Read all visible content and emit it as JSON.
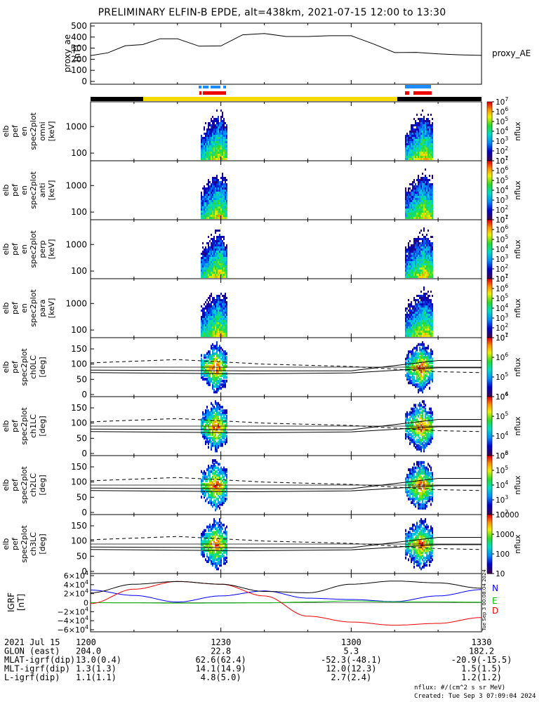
{
  "title": "PRELIMINARY ELFIN-B EPDE, alt=438km, 2021-07-15 12:00 to 13:30",
  "colors": {
    "red": "#ee0000",
    "blue": "#1c8cff",
    "yellow": "#f6da00",
    "black": "#000000"
  },
  "chart_data": [
    {
      "type": "line",
      "panel": "proxy_ae",
      "ylabel": "proxy_ae [nT]",
      "legend": "proxy_AE",
      "ylim": [
        0,
        500
      ],
      "yticks": [
        "500",
        "400",
        "300",
        "200",
        "100",
        "0"
      ],
      "x_minutes": [
        0,
        4,
        8,
        12,
        16,
        20,
        25,
        30,
        35,
        40,
        45,
        50,
        55,
        60,
        65,
        70,
        75,
        80,
        85,
        90
      ],
      "values": [
        232,
        258,
        322,
        332,
        385,
        385,
        318,
        320,
        420,
        432,
        405,
        405,
        412,
        412,
        340,
        260,
        262,
        248,
        240,
        235
      ],
      "series": [
        {
          "name": "proxy_AE",
          "values": [
            232,
            258,
            322,
            332,
            385,
            385,
            318,
            320,
            420,
            432,
            405,
            405,
            412,
            412,
            340,
            260,
            262,
            248,
            240,
            235
          ]
        }
      ]
    },
    {
      "type": "heatmap",
      "panel": "elb pef en spec2plot omni",
      "ylabel": "elb pef en spec2plot omni [keV]",
      "yticks": [
        "1000",
        "100"
      ],
      "colorbar": {
        "label": "nflux",
        "ticks": [
          "10^7",
          "10^6",
          "10^5",
          "10^4",
          "10^3",
          "10^2",
          "10^1"
        ]
      }
    },
    {
      "type": "heatmap",
      "panel": "elb pef en spec2plot anti",
      "ylabel": "elb pef en spec2plot anti [keV]",
      "yticks": [
        "1000",
        "100"
      ],
      "colorbar": {
        "label": "nflux",
        "ticks": [
          "10^7",
          "10^6",
          "10^5",
          "10^4",
          "10^3",
          "10^2",
          "10^1"
        ]
      }
    },
    {
      "type": "heatmap",
      "panel": "elb pef en spec2plot perp",
      "ylabel": "elb pef en spec2plot perp [keV]",
      "yticks": [
        "1000",
        "100"
      ],
      "colorbar": {
        "label": "nflux",
        "ticks": [
          "10^7",
          "10^6",
          "10^5",
          "10^4",
          "10^3",
          "10^2",
          "10^1"
        ]
      }
    },
    {
      "type": "heatmap",
      "panel": "elb pef en spec2plot para",
      "ylabel": "elb pef en spec2plot para [keV]",
      "yticks": [
        "1000",
        "100"
      ],
      "colorbar": {
        "label": "nflux",
        "ticks": [
          "10^7",
          "10^6",
          "10^5",
          "10^4",
          "10^3",
          "10^2",
          "10^1"
        ]
      }
    },
    {
      "type": "heatmap",
      "panel": "elb pef spec2plot ch0LC",
      "ylabel": "elb pef spec2plot ch0LC [deg]",
      "yticks": [
        "150",
        "100",
        "50",
        "0"
      ],
      "colorbar": {
        "label": "nflux",
        "ticks": [
          "10^7",
          "10^6",
          "10^5",
          "10^4"
        ]
      }
    },
    {
      "type": "heatmap",
      "panel": "elb pef spec2plot ch1LC",
      "ylabel": "elb pef spec2plot ch1LC [deg]",
      "yticks": [
        "150",
        "100",
        "50",
        "0"
      ],
      "colorbar": {
        "label": "nflux",
        "ticks": [
          "10^6",
          "10^5",
          "10^4",
          "10^3"
        ]
      }
    },
    {
      "type": "heatmap",
      "panel": "elb pef spec2plot ch2LC",
      "ylabel": "elb pef spec2plot ch2LC [deg]",
      "yticks": [
        "150",
        "100",
        "50",
        "0"
      ],
      "colorbar": {
        "label": "nflux",
        "ticks": [
          "10^6",
          "10^5",
          "10^4",
          "10^3",
          "10^2"
        ]
      }
    },
    {
      "type": "heatmap",
      "panel": "elb pef spec2plot ch3LC",
      "ylabel": "elb pef spec2plot ch3LC [deg]",
      "yticks": [
        "150",
        "100",
        "50",
        "0"
      ],
      "colorbar": {
        "label": "nflux",
        "ticks": [
          "10000",
          "1000",
          "100",
          "10"
        ]
      }
    },
    {
      "type": "line",
      "panel": "IGRF",
      "ylabel": "IGRF [nT]",
      "yticks": [
        "6×10^4",
        "4×10^4",
        "2×10^4",
        "0",
        "−2×10^4",
        "−4×10^4",
        "−6×10^4"
      ],
      "ylim": [
        -60000,
        60000
      ],
      "legend": [
        "N",
        "E",
        "D"
      ],
      "x_minutes": [
        0,
        10,
        20,
        30,
        40,
        50,
        60,
        70,
        80,
        90
      ],
      "series": [
        {
          "name": "N",
          "color": "#0000ff",
          "values": [
            28000,
            16000,
            1500,
            15000,
            26000,
            10000,
            7000,
            2500,
            15000,
            29000
          ]
        },
        {
          "name": "E",
          "color": "#00bb00",
          "values": [
            0,
            -500,
            -1000,
            -800,
            -400,
            1500,
            4000,
            2000,
            1800,
            1000
          ]
        },
        {
          "name": "D",
          "color": "#ee0000",
          "values": [
            -2000,
            30000,
            47000,
            41000,
            15000,
            -30000,
            -43000,
            -50000,
            -46000,
            -33000
          ]
        },
        {
          "name": "",
          "color": "#000000",
          "values": [
            22000,
            41000,
            47000,
            41000,
            25000,
            22000,
            41000,
            48000,
            44000,
            32000
          ]
        }
      ]
    }
  ],
  "axis_table": {
    "rows": [
      {
        "label": "2021 Jul 15",
        "values": [
          "1200",
          "1230",
          "1300",
          "1330"
        ]
      },
      {
        "label": "GLON (east)",
        "values": [
          "204.0",
          "22.8",
          "5.3",
          "182.2"
        ]
      },
      {
        "label": "MLAT-igrf(dip)",
        "values": [
          "13.0(0.4)",
          "62.6(62.4)",
          "-52.3(-48.1)",
          "-20.9(-15.5)"
        ]
      },
      {
        "label": "MLT-igrf(dip)",
        "values": [
          "1.3(1.3)",
          "14.1(14.9)",
          "12.0(12.3)",
          "1.5(1.5)"
        ]
      },
      {
        "label": "L-igrf(dip)",
        "values": [
          "1.1(1.1)",
          "4.8(5.0)",
          "2.7(2.4)",
          "1.2(1.2)"
        ]
      }
    ]
  },
  "footer": {
    "units": "nflux: #/(cm^2 s sr MeV)",
    "created": "Created: Tue Sep  3 07:09:04 2024",
    "side_stamp": "Tue Sep  3 00:08:04 2024"
  }
}
